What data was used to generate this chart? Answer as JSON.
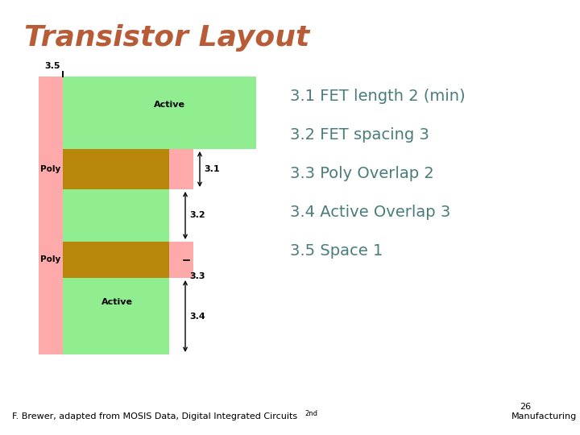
{
  "title": "Transistor Layout",
  "title_color": "#b85c38",
  "title_fontsize": 26,
  "bg_color": "#ffffff",
  "active_color": "#90ee90",
  "poly_color": "#ffaaaa",
  "overlap_color": "#b8860b",
  "text_color": "#000000",
  "dim_label_color": "#000000",
  "label_color": "#4a7c7c",
  "footer_text": "F. Brewer, adapted from MOSIS Data, Digital Integrated Circuits",
  "footer_sup": "2nd",
  "footer_right": "Manufacturing",
  "footer_page": "26",
  "rules": [
    "3.1 FET length 2 (min)",
    "3.2 FET spacing 3",
    "3.3 Poly Overlap 2",
    "3.4 Active Overlap 3",
    "3.5 Space 1"
  ]
}
